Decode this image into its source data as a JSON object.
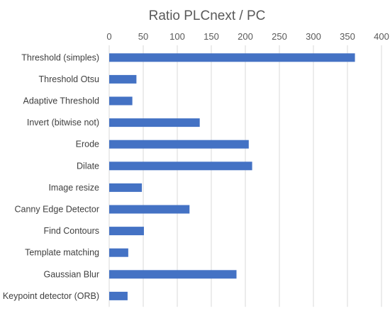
{
  "chart_data": {
    "type": "bar",
    "orientation": "horizontal",
    "title": "Ratio PLCnext / PC",
    "xlabel": "",
    "ylabel": "",
    "xlim": [
      0,
      400
    ],
    "ticks": [
      0,
      50,
      100,
      150,
      200,
      250,
      300,
      350,
      400
    ],
    "tick_labels": [
      "0",
      "50",
      "100",
      "150",
      "200",
      "250",
      "300",
      "350",
      "400"
    ],
    "axis_position": "top",
    "grid": true,
    "legend": "none",
    "bar_color": "#4472C4",
    "categories": [
      "Threshold (simples)",
      "Threshold Otsu",
      "Adaptive Threshold",
      "Invert (bitwise not)",
      "Erode",
      "Dilate",
      "Image resize",
      "Canny Edge Detector",
      "Find Contours",
      "Template matching",
      "Gaussian Blur",
      "Keypoint detector (ORB)"
    ],
    "values": [
      361,
      40,
      34,
      133,
      205,
      210,
      48,
      118,
      51,
      28,
      187,
      27
    ]
  }
}
